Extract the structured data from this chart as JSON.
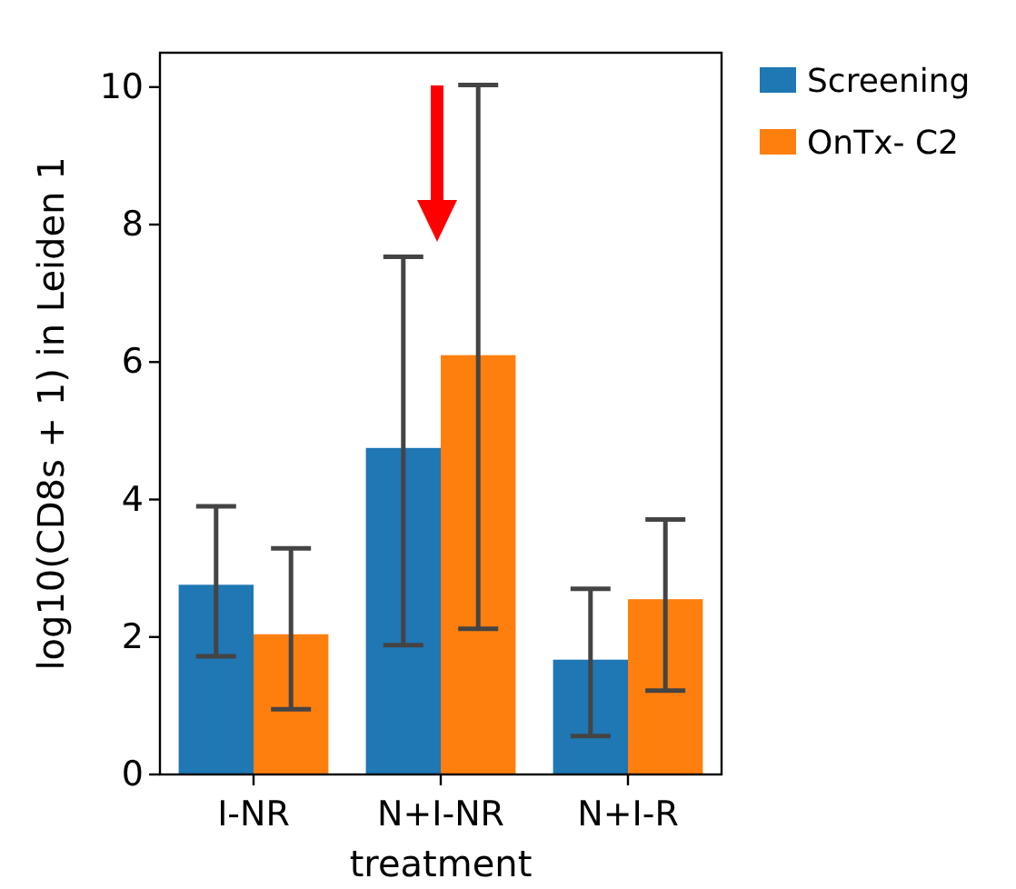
{
  "chart_data": {
    "type": "bar",
    "xlabel": "treatment",
    "ylabel": "log10(CD8s + 1) in Leiden 1",
    "categories": [
      "I-NR",
      "N+I-NR",
      "N+I-R"
    ],
    "series": [
      {
        "name": "Screening",
        "color": "#1f77b4",
        "values": [
          2.76,
          4.75,
          1.67
        ],
        "errors": [
          [
            1.72,
            3.9
          ],
          [
            1.88,
            7.53
          ],
          [
            0.56,
            2.7
          ]
        ]
      },
      {
        "name": "OnTx- C2",
        "color": "#ff7f0e",
        "values": [
          2.04,
          6.1,
          2.55
        ],
        "errors": [
          [
            0.95,
            3.29
          ],
          [
            2.12,
            10.03
          ],
          [
            1.22,
            3.71
          ]
        ]
      }
    ],
    "ylim": [
      0,
      10.5
    ],
    "yticks": [
      0,
      2,
      4,
      6,
      8,
      10
    ],
    "legend": "top right"
  }
}
